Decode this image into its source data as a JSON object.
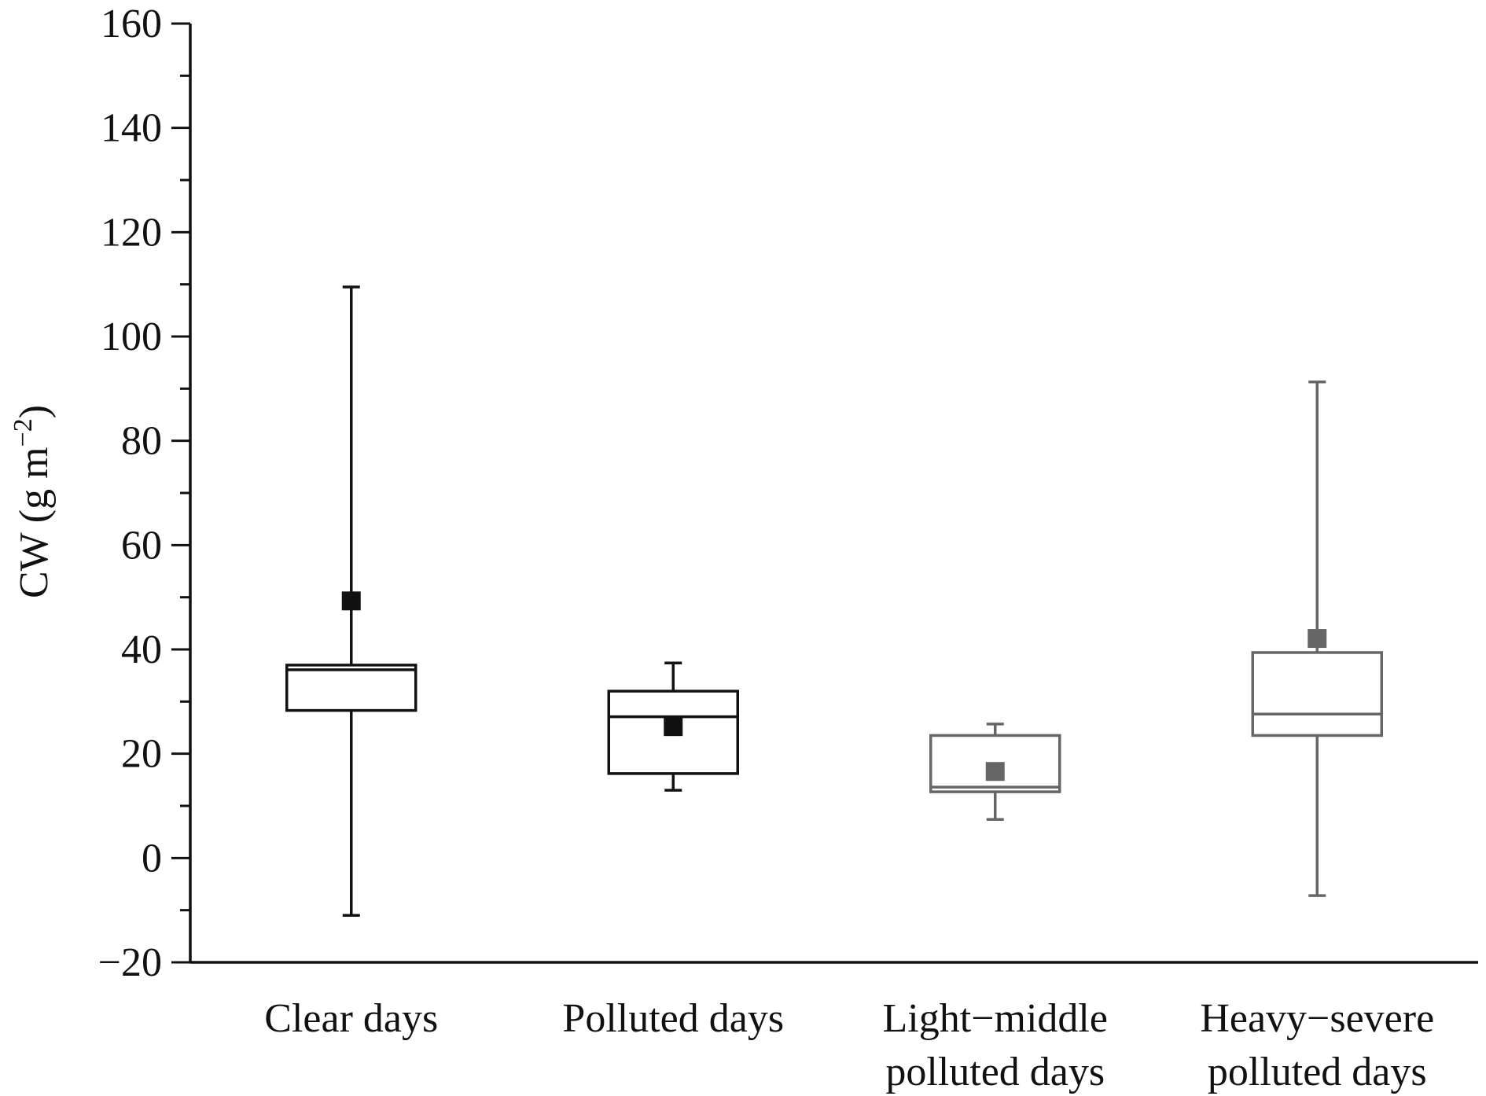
{
  "chart_data": {
    "type": "box",
    "ylabel_main": "CW (g m",
    "ylabel_sup": "−2",
    "ylabel_close": ")",
    "ylim": [
      -20,
      160
    ],
    "y_ticks": [
      -20,
      0,
      20,
      40,
      60,
      80,
      100,
      120,
      140,
      160
    ],
    "y_tick_labels": [
      "−20",
      "0",
      "20",
      "40",
      "60",
      "80",
      "100",
      "120",
      "140",
      "160"
    ],
    "y_minor_step": 10,
    "grid": false,
    "boxes": [
      {
        "label_lines": [
          "Clear days"
        ],
        "whisker_min": -11,
        "q1": 28.3,
        "median": 36.1,
        "q3": 37.0,
        "whisker_max": 109.5,
        "mean": 49.3,
        "color": "#111111"
      },
      {
        "label_lines": [
          "Polluted days"
        ],
        "whisker_min": 13.0,
        "q1": 16.2,
        "median": 27.1,
        "q3": 32.0,
        "whisker_max": 37.4,
        "mean": 25.2,
        "color": "#111111"
      },
      {
        "label_lines": [
          "Light−middle",
          "polluted days"
        ],
        "whisker_min": 7.4,
        "q1": 12.7,
        "median": 13.6,
        "q3": 23.5,
        "whisker_max": 25.7,
        "mean": 16.6,
        "color": "#666666"
      },
      {
        "label_lines": [
          "Heavy−severe",
          "polluted days"
        ],
        "whisker_min": -7.2,
        "q1": 23.5,
        "median": 27.6,
        "q3": 39.4,
        "whisker_max": 91.3,
        "mean": 42.1,
        "color": "#666666"
      }
    ]
  }
}
